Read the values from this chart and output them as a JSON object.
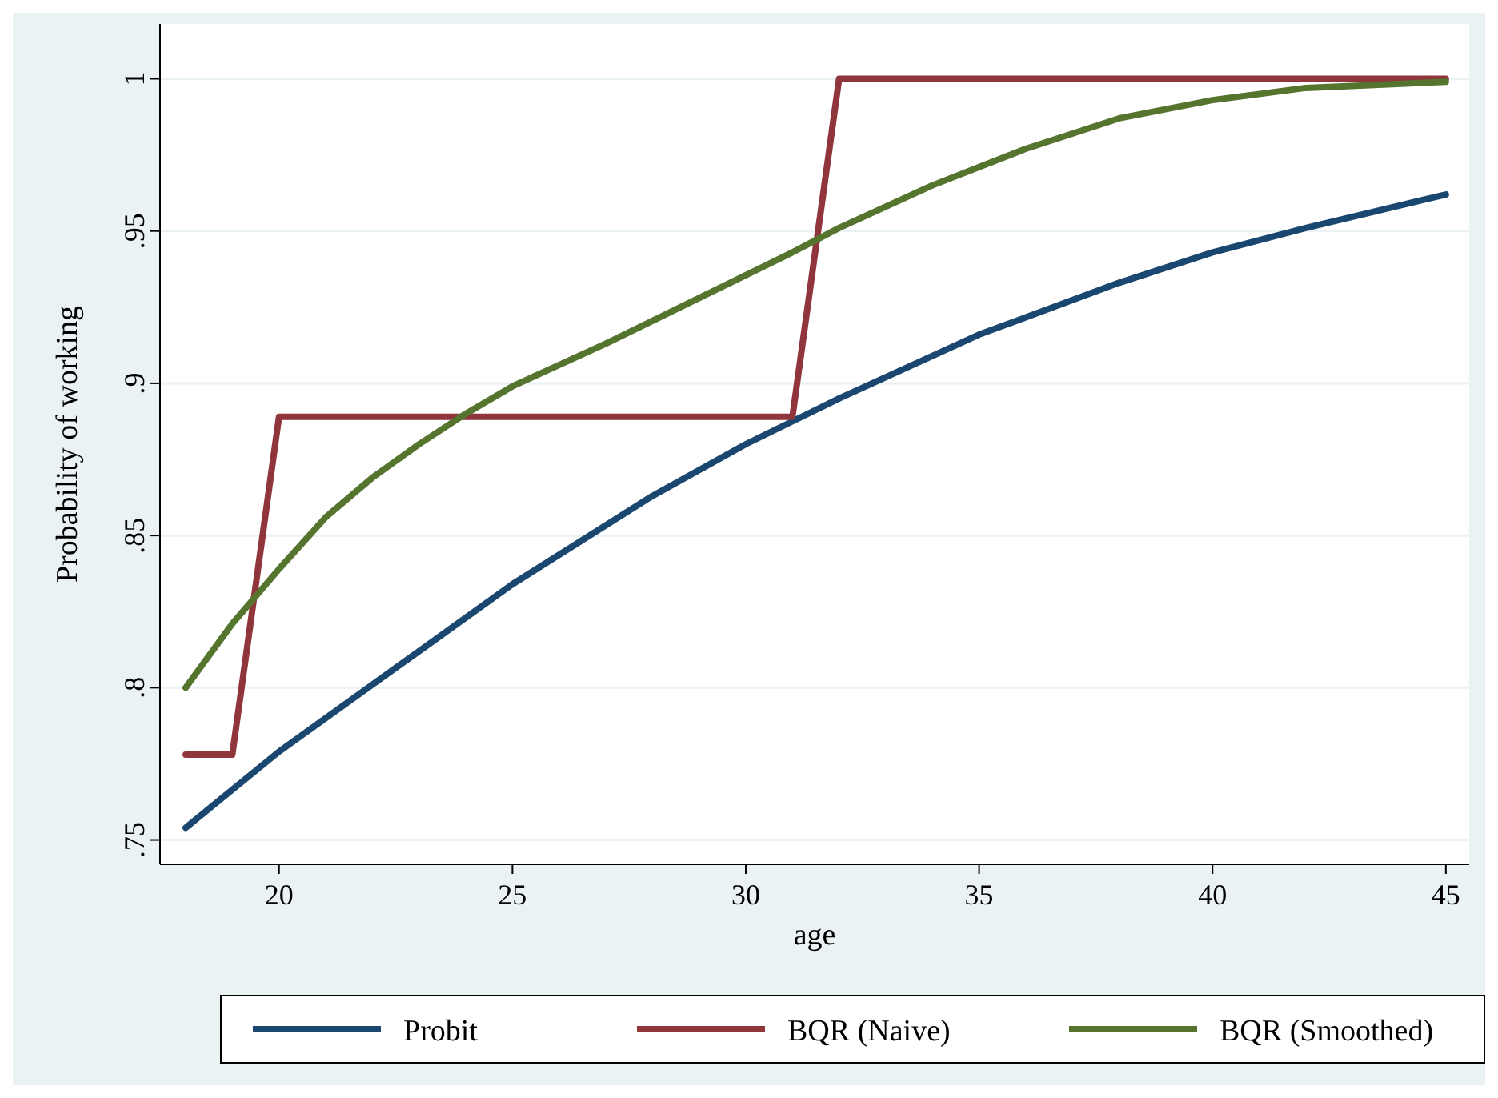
{
  "chart_data": {
    "type": "line",
    "xlabel": "age",
    "ylabel": "Probability of working",
    "xlim": [
      17.45,
      45.5
    ],
    "ylim": [
      0.742,
      1.018
    ],
    "xticks": [
      20,
      25,
      30,
      35,
      40,
      45
    ],
    "yticks": [
      {
        "value": 0.75,
        "label": ".75"
      },
      {
        "value": 0.8,
        "label": ".8"
      },
      {
        "value": 0.85,
        "label": ".85"
      },
      {
        "value": 0.9,
        "label": ".9"
      },
      {
        "value": 0.95,
        "label": ".95"
      },
      1
    ],
    "grid": "y",
    "legend": "bottom",
    "line_style": "solid",
    "series": [
      {
        "name": "Probit",
        "color": "#1a476f",
        "x": [
          18,
          20,
          22,
          25,
          28,
          30,
          32,
          35,
          38,
          40,
          42,
          45
        ],
        "values": [
          0.754,
          0.779,
          0.801,
          0.834,
          0.863,
          0.88,
          0.895,
          0.916,
          0.933,
          0.943,
          0.951,
          0.962
        ]
      },
      {
        "name": "BQR (Naive)",
        "color": "#90353b",
        "x": [
          18,
          19,
          20,
          31,
          32,
          45
        ],
        "values": [
          0.778,
          0.778,
          0.889,
          0.889,
          1,
          1
        ]
      },
      {
        "name": "BQR (Smoothed)",
        "color": "#55752f",
        "x": [
          18,
          19,
          20,
          21,
          22,
          23,
          24,
          25,
          27,
          29,
          31,
          32,
          34,
          36,
          38,
          40,
          42,
          45
        ],
        "values": [
          0.8,
          0.821,
          0.839,
          0.856,
          0.869,
          0.88,
          0.89,
          0.899,
          0.913,
          0.928,
          0.943,
          0.951,
          0.965,
          0.977,
          0.987,
          0.993,
          0.997,
          0.999
        ]
      }
    ]
  }
}
